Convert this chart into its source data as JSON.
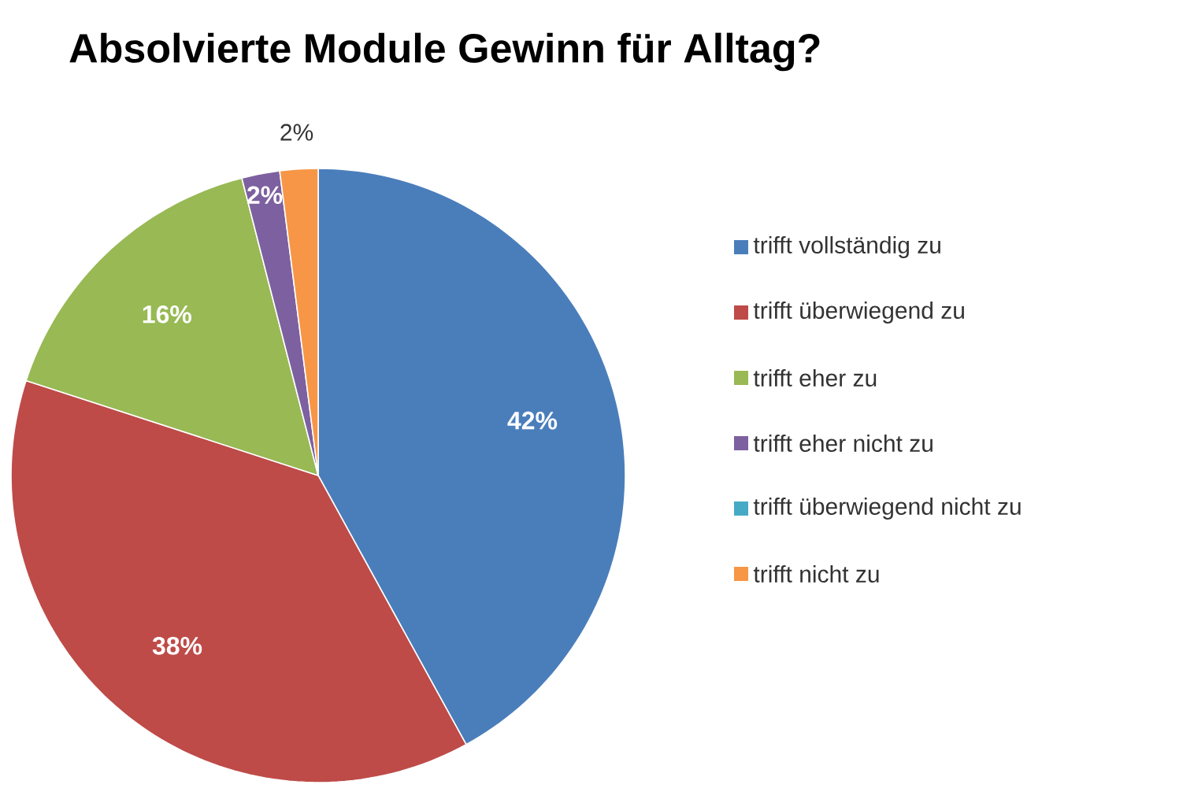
{
  "chart_data": {
    "type": "pie",
    "title": "Absolvierte Module Gewinn für Alltag?",
    "categories": [
      "trifft vollständig zu",
      "trifft überwiegend zu",
      "trifft eher zu",
      "trifft eher nicht zu",
      "trifft überwiegend nicht zu",
      "trifft nicht zu"
    ],
    "values": [
      42,
      38,
      16,
      2,
      0,
      2
    ],
    "colors": [
      "#4a7ebb",
      "#be4b48",
      "#98b954",
      "#7d60a0",
      "#46aac5",
      "#f79646"
    ],
    "value_labels": [
      "42%",
      "38%",
      "16%",
      "2%",
      null,
      "2%"
    ],
    "legend": "right"
  }
}
